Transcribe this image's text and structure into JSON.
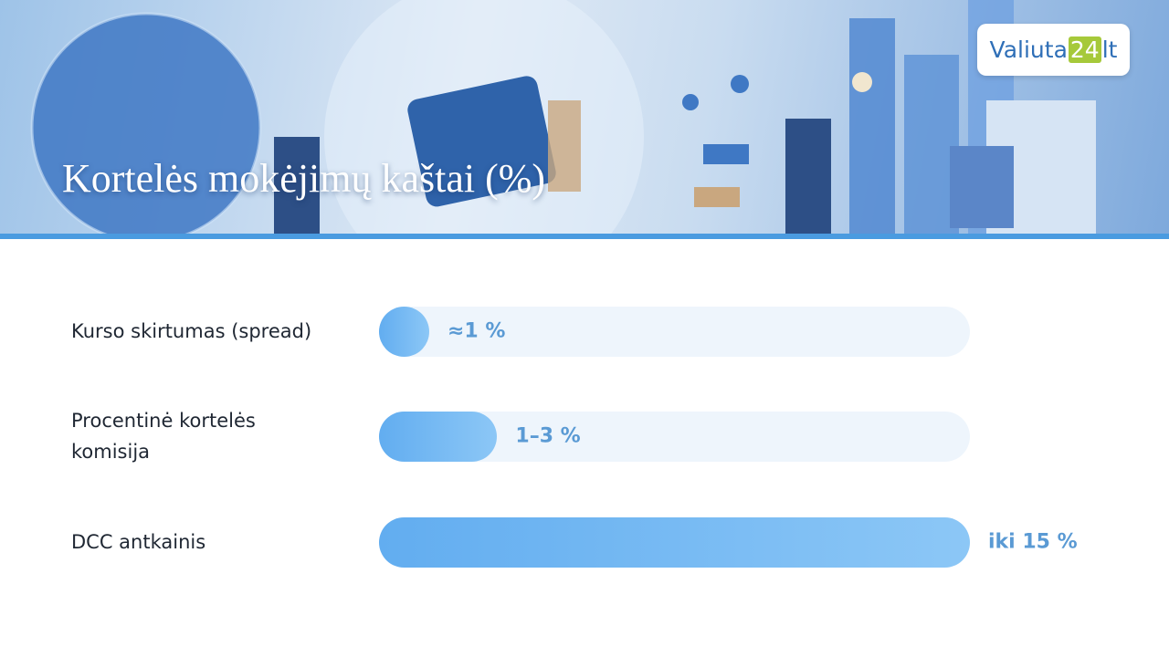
{
  "chart_data": {
    "type": "bar",
    "orientation": "horizontal",
    "title": "Kortelės mokėjimų kaštai (%)",
    "logo": {
      "name": "Valiuta",
      "number": "24",
      "suffix": "lt"
    },
    "categories": [
      "Kurso skirtumas (spread)",
      "Procentinė kortelės komisija",
      "DCC antkainis"
    ],
    "values": [
      1,
      3,
      15
    ],
    "value_labels": [
      "≈1 %",
      "1–3 %",
      "iki 15 %"
    ],
    "xlim": [
      0,
      15
    ],
    "color": "#62adf0",
    "track_color": "#eef5fc",
    "label_color": "#5a9ad4"
  }
}
